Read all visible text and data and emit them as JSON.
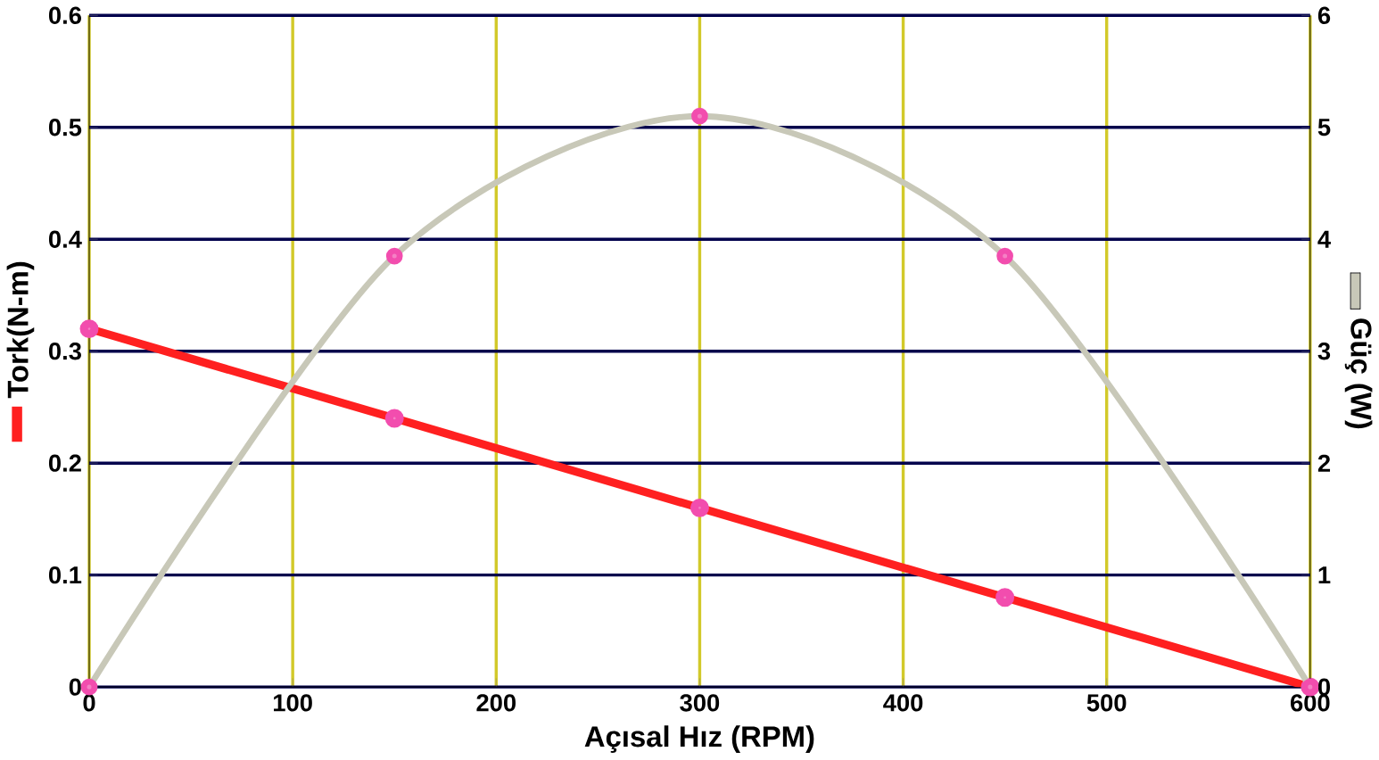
{
  "chart_data": {
    "type": "line",
    "xlabel": "Açısal Hız (RPM)",
    "ylabel": "Tork(N-m)",
    "y2label": "Güç (W)",
    "x": [
      0,
      150,
      300,
      450,
      600
    ],
    "series": [
      {
        "color": "#ff2020",
        "values": [
          0.32,
          0.24,
          0.16,
          0.08,
          0
        ]
      },
      {
        "color": "#c8c8b8",
        "values": [
          0,
          3.85,
          5.1,
          3.85,
          0
        ],
        "axis": "y2"
      }
    ],
    "xlim": [
      0,
      600
    ],
    "xticks": [
      0,
      100,
      200,
      300,
      400,
      500,
      600
    ],
    "ylim": [
      0,
      0.6
    ],
    "yticks": [
      0,
      0.1,
      0.2,
      0.3,
      0.4,
      0.5,
      0.6
    ],
    "y2lim": [
      0,
      6
    ],
    "y2ticks": [
      0,
      1,
      2,
      3,
      4,
      5,
      6
    ],
    "grid": true,
    "marker": "circle"
  }
}
